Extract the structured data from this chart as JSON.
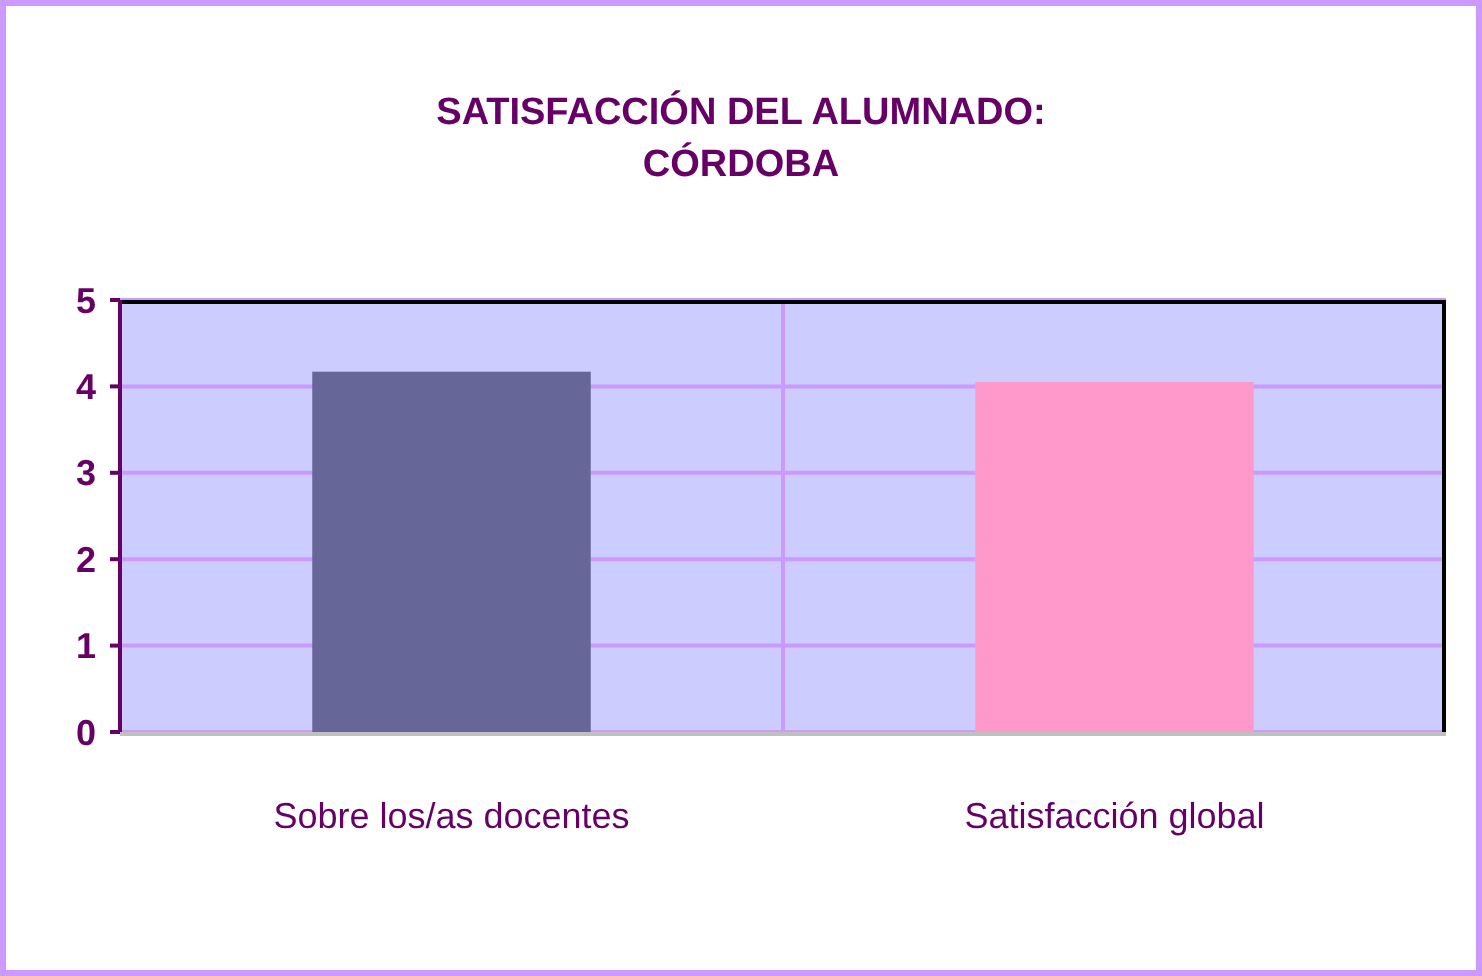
{
  "chart_data": {
    "type": "bar",
    "title": "SATISFACCIÓN DEL ALUMNADO:\nCÓRDOBA",
    "categories": [
      "Sobre los/as docentes",
      "Satisfacción global"
    ],
    "values": [
      4.17,
      4.05
    ],
    "colors": [
      "#666699",
      "#ff99cc"
    ],
    "ylim": [
      0,
      5
    ],
    "yticks": [
      0,
      1,
      2,
      3,
      4,
      5
    ],
    "grid": true
  }
}
